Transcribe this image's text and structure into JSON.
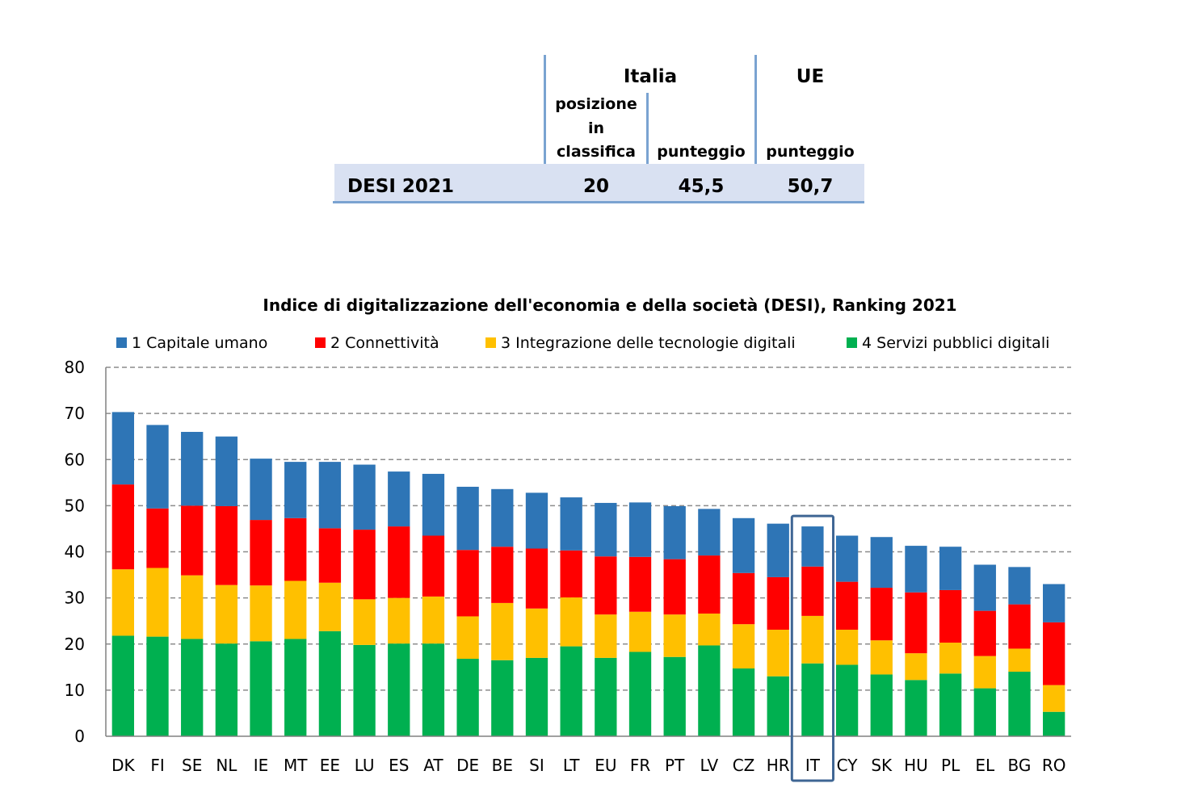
{
  "table": {
    "group_italia": "Italia",
    "group_ue": "UE",
    "col_rank": [
      "posizione",
      "in",
      "classifica"
    ],
    "col_score_it": "punteggio",
    "col_score_ue": "punteggio",
    "row_label": "DESI 2021",
    "rank": "20",
    "score_it": "45,5",
    "score_ue": "50,7",
    "colors": {
      "rule": "#7aa3d1",
      "band": "#d9e1f2"
    }
  },
  "chart_data": {
    "type": "bar",
    "stacked": true,
    "title": "Indice di digitalizzazione dell'economia e della società (DESI), Ranking 2021",
    "categories": [
      "DK",
      "FI",
      "SE",
      "NL",
      "IE",
      "MT",
      "EE",
      "LU",
      "ES",
      "AT",
      "DE",
      "BE",
      "SI",
      "LT",
      "EU",
      "FR",
      "PT",
      "LV",
      "CZ",
      "HR",
      "IT",
      "CY",
      "SK",
      "HU",
      "PL",
      "EL",
      "BG",
      "RO"
    ],
    "series": [
      {
        "name": "4 Servizi pubblici digitali",
        "color": "#00b050",
        "values": [
          21.8,
          21.6,
          21.1,
          20.1,
          20.6,
          21.1,
          22.8,
          19.8,
          20.1,
          20.1,
          16.8,
          16.5,
          17.0,
          19.5,
          17.0,
          18.3,
          17.2,
          19.7,
          14.7,
          13.0,
          15.8,
          15.5,
          13.4,
          12.2,
          13.6,
          10.4,
          14.0,
          5.3
        ]
      },
      {
        "name": "3 Integrazione delle tecnologie digitali",
        "color": "#ffc000",
        "values": [
          14.4,
          14.9,
          13.8,
          12.7,
          12.1,
          12.6,
          10.5,
          9.9,
          9.9,
          10.2,
          9.2,
          12.4,
          10.7,
          10.6,
          9.4,
          8.7,
          9.2,
          6.9,
          9.6,
          10.1,
          10.3,
          7.6,
          7.4,
          5.8,
          6.7,
          7.0,
          5.0,
          5.8
        ]
      },
      {
        "name": "2 Connettività",
        "color": "#ff0000",
        "values": [
          18.4,
          12.9,
          15.1,
          17.1,
          14.2,
          13.6,
          11.8,
          15.1,
          15.5,
          13.2,
          14.4,
          12.2,
          13.0,
          10.2,
          12.6,
          11.9,
          12.0,
          12.6,
          11.1,
          11.4,
          10.7,
          10.4,
          11.4,
          13.2,
          11.4,
          9.8,
          9.6,
          13.6
        ]
      },
      {
        "name": "1 Capitale umano",
        "color": "#2e75b6",
        "values": [
          15.7,
          18.1,
          16.0,
          15.1,
          13.3,
          12.2,
          14.4,
          14.1,
          11.9,
          13.4,
          13.7,
          12.5,
          12.1,
          11.5,
          11.6,
          11.8,
          11.5,
          10.1,
          11.9,
          11.6,
          8.7,
          10.0,
          11.0,
          10.1,
          9.4,
          10.0,
          8.1,
          8.3
        ]
      }
    ],
    "ylim": [
      0,
      80
    ],
    "yticks": [
      0,
      10,
      20,
      30,
      40,
      50,
      60,
      70,
      80
    ],
    "grid": true,
    "gridStyle": "dashed",
    "legend": "top",
    "highlight": "IT",
    "highlight_color": "#3f6694"
  }
}
